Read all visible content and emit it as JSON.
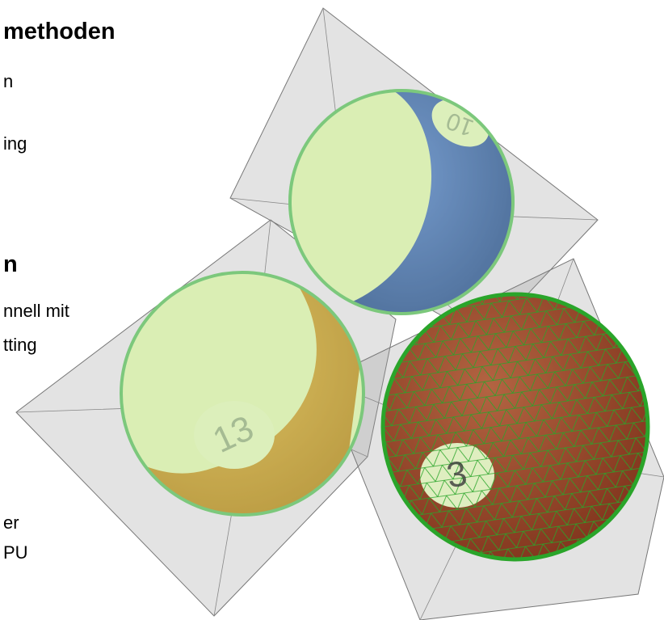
{
  "texts": [
    "methoden",
    "n",
    "ing",
    "n",
    "nnell mit",
    "tting",
    "er",
    "PU"
  ],
  "ball_numbers": [
    "10",
    "13",
    "3"
  ]
}
